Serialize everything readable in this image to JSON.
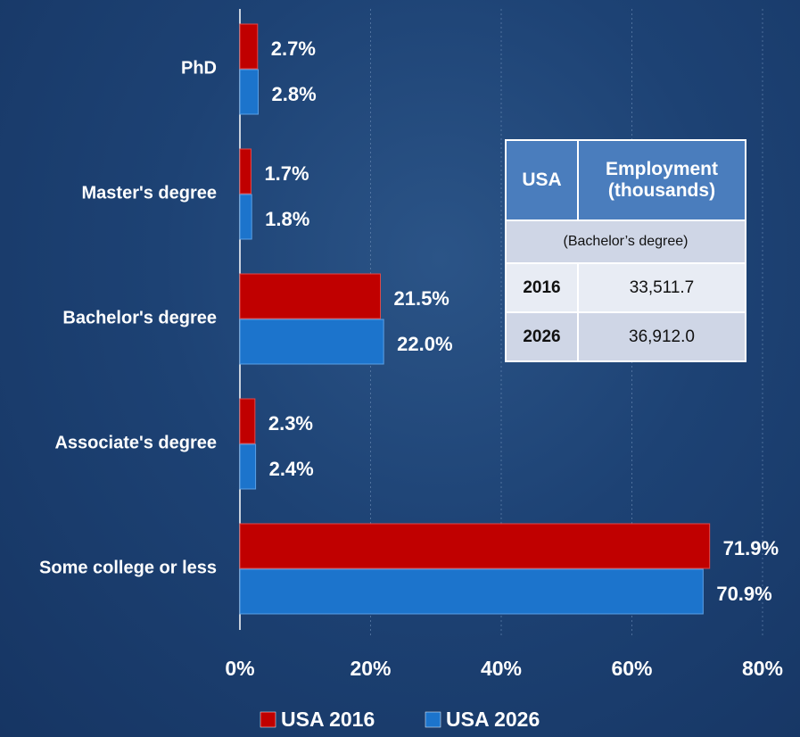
{
  "chart_data": {
    "type": "bar",
    "orientation": "horizontal",
    "categories": [
      "PhD",
      "Master's degree",
      "Bachelor's degree",
      "Associate's degree",
      "Some college or less"
    ],
    "series": [
      {
        "name": "USA 2016",
        "color": "#c00000",
        "values": [
          2.7,
          1.7,
          21.5,
          2.3,
          71.9
        ],
        "value_labels": [
          "2.7%",
          "1.7%",
          "21.5%",
          "2.3%",
          "71.9%"
        ]
      },
      {
        "name": "USA 2026",
        "color": "#1c74cc",
        "values": [
          2.8,
          1.8,
          22.0,
          2.4,
          70.9
        ],
        "value_labels": [
          "2.8%",
          "1.8%",
          "22.0%",
          "2.4%",
          "70.9%"
        ]
      }
    ],
    "xlim": [
      0,
      80
    ],
    "xticks": [
      {
        "value": 0,
        "label": "0%"
      },
      {
        "value": 20,
        "label": "20%"
      },
      {
        "value": 40,
        "label": "40%"
      },
      {
        "value": 60,
        "label": "60%"
      },
      {
        "value": 80,
        "label": "80%"
      }
    ],
    "grid": true,
    "legend": "bottom"
  },
  "table": {
    "header": [
      "USA",
      "Employment (thousands)"
    ],
    "subheader": "(Bachelor’s degree)",
    "rows": [
      [
        "2016",
        "33,511.7"
      ],
      [
        "2026",
        "36,912.0"
      ]
    ]
  }
}
